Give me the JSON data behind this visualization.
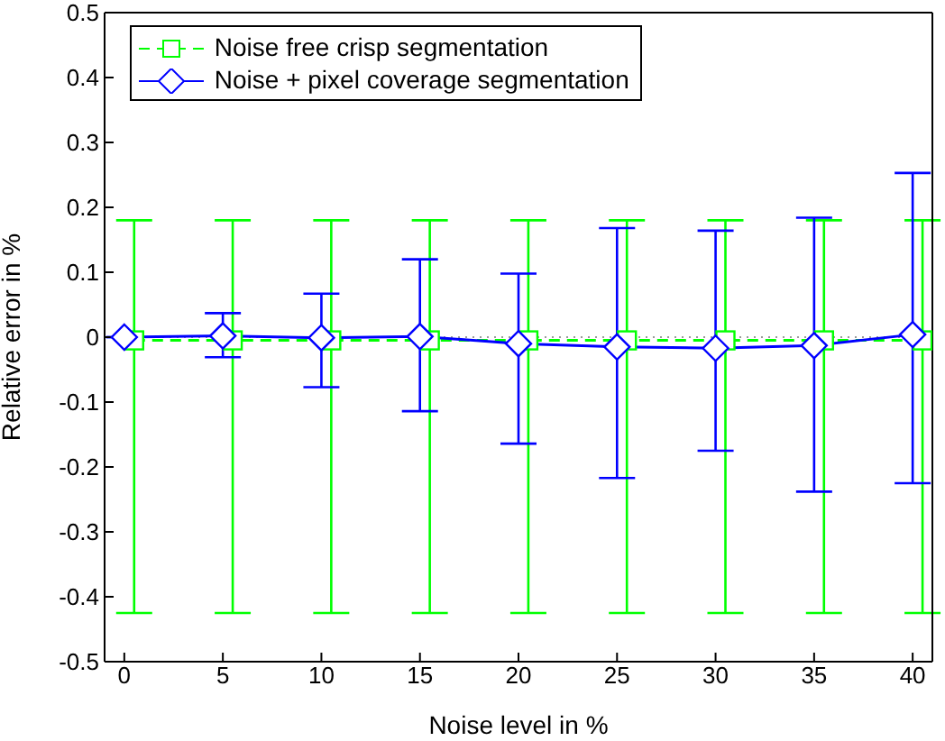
{
  "chart_data": {
    "type": "line",
    "xlabel": "Noise level in %",
    "ylabel": "Relative error in %",
    "xlim": [
      -1,
      41
    ],
    "xticks": [
      0,
      5,
      10,
      15,
      20,
      25,
      30,
      35,
      40
    ],
    "ylim": [
      -0.5,
      0.5
    ],
    "yticks": [
      -0.5,
      -0.4,
      -0.3,
      -0.2,
      -0.1,
      0,
      0.1,
      0.2,
      0.3,
      0.4,
      0.5
    ],
    "legend": "top left",
    "ref_lines": [
      {
        "axis": "y",
        "value": 0,
        "color": "#999999",
        "line_style": "dotted"
      }
    ],
    "series": [
      {
        "name": "Noise free crisp segmentation",
        "color": "#00ff00",
        "marker": "square",
        "line_style": "dashed",
        "x": [
          0.5,
          5.5,
          10.5,
          15.5,
          20.5,
          25.5,
          30.5,
          35.5,
          40.5
        ],
        "values": [
          -0.005,
          -0.005,
          -0.005,
          -0.005,
          -0.005,
          -0.005,
          -0.005,
          -0.005,
          -0.005
        ],
        "errors": [
          [
            -0.425,
            0.18
          ],
          [
            -0.425,
            0.18
          ],
          [
            -0.425,
            0.18
          ],
          [
            -0.425,
            0.18
          ],
          [
            -0.425,
            0.18
          ],
          [
            -0.425,
            0.18
          ],
          [
            -0.425,
            0.18
          ],
          [
            -0.425,
            0.18
          ],
          [
            -0.425,
            0.18
          ]
        ]
      },
      {
        "name": "Noise + pixel coverage segmentation",
        "color": "#0000ff",
        "marker": "diamond",
        "line_style": "solid",
        "x": [
          0,
          5,
          10,
          15,
          20,
          25,
          30,
          35,
          40
        ],
        "values": [
          0,
          0.002,
          -0.001,
          0.001,
          -0.01,
          -0.015,
          -0.017,
          -0.013,
          0.004
        ],
        "errors": [
          null,
          [
            -0.031,
            0.037
          ],
          [
            -0.077,
            0.067
          ],
          [
            -0.114,
            0.12
          ],
          [
            -0.164,
            0.098
          ],
          [
            -0.217,
            0.168
          ],
          [
            -0.175,
            0.164
          ],
          [
            -0.238,
            0.184
          ],
          [
            -0.225,
            0.253
          ]
        ]
      }
    ]
  }
}
